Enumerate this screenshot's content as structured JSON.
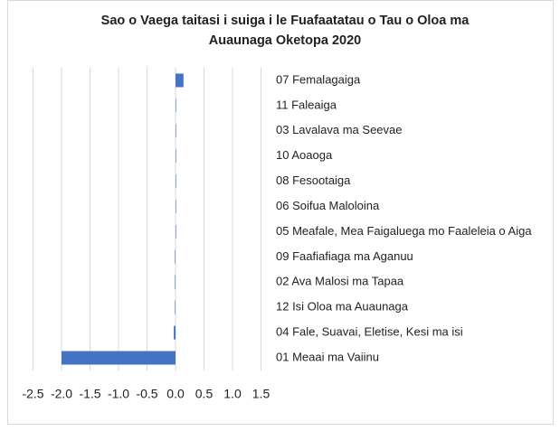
{
  "chart_data": {
    "type": "hbar",
    "title": "Sao o Vaega taitasi i suiga i le Fuafaatatau o Tau o Oloa ma Auaunaga Oketopa 2020",
    "categories": [
      "07 Femalagaiga",
      "11 Faleaiga",
      "03 Lavalava ma Seevae",
      "10 Aoaoga",
      "08 Fesootaiga",
      "06 Soifua Maloloina",
      "05 Meafale, Mea Faigaluega mo Faaleleia o Aiga",
      "09 Faafiafiaga ma Aganuu",
      "02 Ava Malosi ma Tapaa",
      "12 Isi Oloa ma Auaunaga",
      "04 Fale, Suavai, Eletise, Kesi ma isi",
      "01 Meaai ma Vaiinu"
    ],
    "values": [
      0.14,
      0,
      0,
      0,
      0,
      0,
      0.01,
      -0.01,
      -0.01,
      -0.01,
      -0.03,
      -2.0
    ],
    "color": "#4472c4",
    "xlim": [
      -2.5,
      1.5
    ],
    "xticks": [
      -2.5,
      {
        "value": -2.0,
        "label": "-2.0"
      },
      -1.5,
      {
        "value": -1.0,
        "label": "-1.0"
      },
      -0.5,
      {
        "value": 0.0,
        "label": "0.0"
      },
      0.5,
      {
        "value": 1.0,
        "label": "1.0"
      },
      1.5
    ],
    "grid": true
  }
}
